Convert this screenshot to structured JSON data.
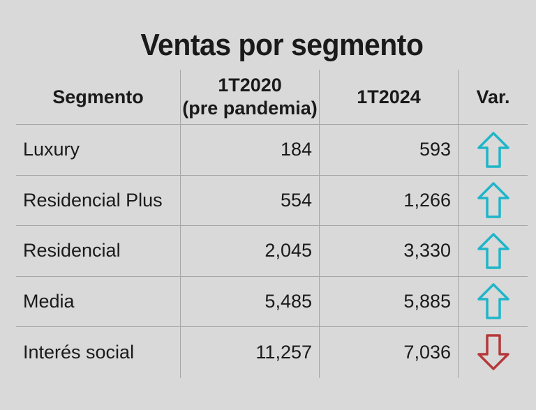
{
  "title": "Ventas por segmento",
  "chart_data": {
    "type": "table",
    "title": "Ventas por segmento",
    "columns": [
      "Segmento",
      "1T2020 (pre pandemia)",
      "1T2024",
      "Var."
    ],
    "header": {
      "segment": "Segmento",
      "q1_2020_line1": "1T2020",
      "q1_2020_line2": "(pre pandemia)",
      "q1_2024": "1T2024",
      "variation": "Var."
    },
    "rows": [
      {
        "segment": "Luxury",
        "q1_2020": "184",
        "q1_2024": "593",
        "trend": "up"
      },
      {
        "segment": "Residencial Plus",
        "q1_2020": "554",
        "q1_2024": "1,266",
        "trend": "up"
      },
      {
        "segment": "Residencial",
        "q1_2020": "2,045",
        "q1_2024": "3,330",
        "trend": "up"
      },
      {
        "segment": "Media",
        "q1_2020": "5,485",
        "q1_2024": "5,885",
        "trend": "up"
      },
      {
        "segment": "Interés social",
        "q1_2020": "11,257",
        "q1_2024": "7,036",
        "trend": "down"
      }
    ],
    "colors": {
      "up_arrow": "#1fb5c9",
      "down_arrow": "#b5383a"
    },
    "icons": {
      "up": "arrow-up-icon",
      "down": "arrow-down-icon"
    }
  }
}
